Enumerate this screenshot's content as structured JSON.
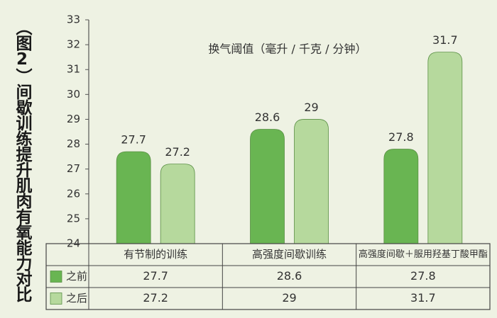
{
  "chart_data": {
    "type": "bar",
    "title": "（图2）间歇训练提升肌肉有氧能力对比",
    "subtitle": "换气阈值（毫升 / 千克 / 分钟）",
    "categories": [
      "有节制的训练",
      "高强度间歇训练",
      "高强度间歇＋服用羟基丁酸甲酯"
    ],
    "series": [
      {
        "name": "之前",
        "color": "#69b552",
        "values": [
          27.7,
          28.6,
          27.8
        ]
      },
      {
        "name": "之后",
        "color": "#b6d99d",
        "values": [
          27.2,
          29,
          31.7
        ]
      }
    ],
    "ylim": [
      24,
      33
    ],
    "yticks": [
      24,
      25,
      26,
      27,
      28,
      29,
      30,
      31,
      32,
      33
    ]
  }
}
